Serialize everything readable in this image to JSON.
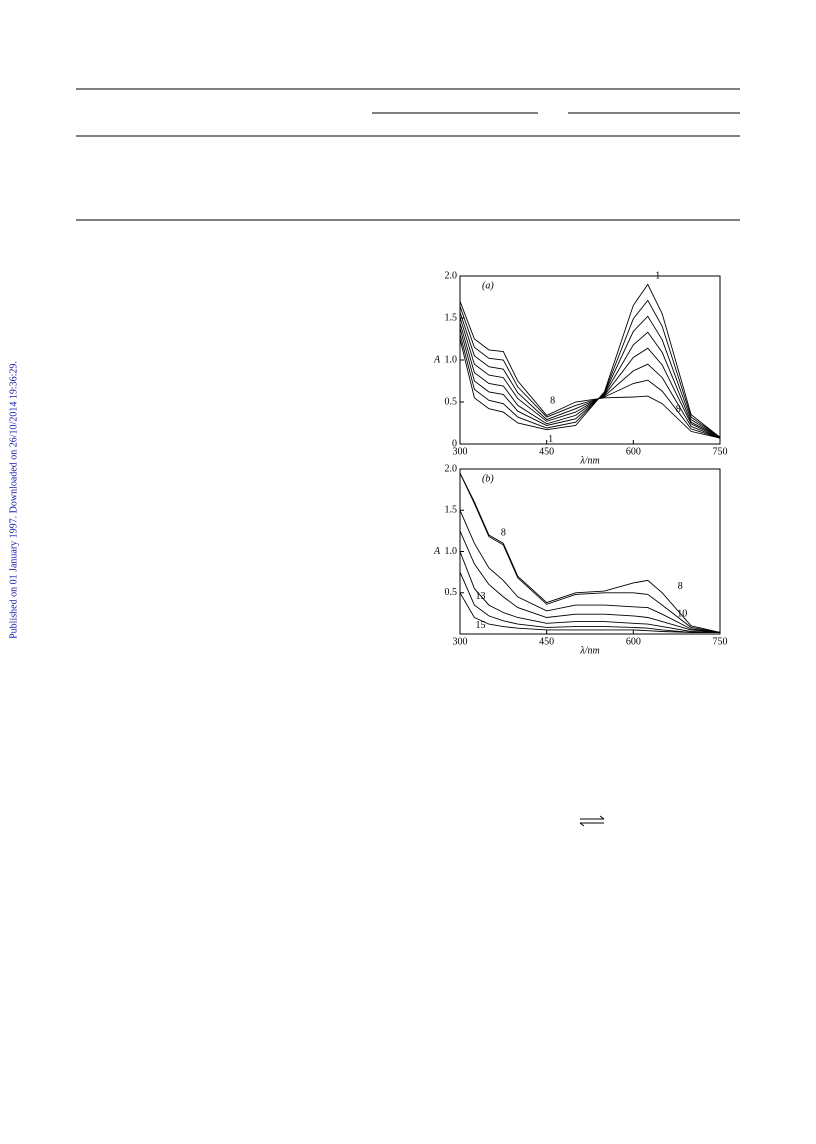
{
  "side_note": "Published on 01 January 1997. Downloaded on 26/10/2014 19:36:29.",
  "chart_data": [
    {
      "type": "line",
      "panel_label": "(a)",
      "x_label": "λ/nm",
      "y_label": "A",
      "color": "#000000",
      "x": [
        300,
        325,
        350,
        375,
        400,
        450,
        500,
        550,
        600,
        625,
        650,
        700,
        750
      ],
      "xlim": [
        300,
        750
      ],
      "xticks": [
        300,
        450,
        600,
        750
      ],
      "ylim": [
        0,
        2
      ],
      "yticks": [
        0,
        0.5,
        {
          "value": 1,
          "label": "1.0"
        },
        1.5,
        {
          "value": 2,
          "label": "2.0"
        }
      ],
      "series": [
        {
          "name": "1",
          "values": [
            1.25,
            0.55,
            0.42,
            0.38,
            0.25,
            0.17,
            0.22,
            0.62,
            1.65,
            1.9,
            1.55,
            0.35,
            0.08
          ]
        },
        {
          "values": [
            1.31,
            0.65,
            0.52,
            0.48,
            0.32,
            0.19,
            0.26,
            0.61,
            1.49,
            1.71,
            1.4,
            0.32,
            0.08
          ]
        },
        {
          "values": [
            1.38,
            0.75,
            0.62,
            0.59,
            0.39,
            0.22,
            0.3,
            0.6,
            1.34,
            1.52,
            1.24,
            0.29,
            0.08
          ]
        },
        {
          "values": [
            1.44,
            0.85,
            0.72,
            0.69,
            0.46,
            0.24,
            0.34,
            0.59,
            1.18,
            1.33,
            1.09,
            0.26,
            0.08
          ]
        },
        {
          "values": [
            1.51,
            0.95,
            0.82,
            0.79,
            0.54,
            0.27,
            0.38,
            0.58,
            1.03,
            1.14,
            0.94,
            0.24,
            0.07
          ]
        },
        {
          "values": [
            1.57,
            1.05,
            0.92,
            0.89,
            0.61,
            0.29,
            0.42,
            0.57,
            0.87,
            0.95,
            0.79,
            0.21,
            0.07
          ]
        },
        {
          "values": [
            1.64,
            1.15,
            1.02,
            1.0,
            0.68,
            0.32,
            0.46,
            0.56,
            0.72,
            0.76,
            0.63,
            0.18,
            0.07
          ]
        },
        {
          "name": "8",
          "values": [
            1.7,
            1.25,
            1.12,
            1.1,
            0.75,
            0.34,
            0.5,
            0.55,
            0.56,
            0.57,
            0.48,
            0.15,
            0.07
          ]
        }
      ]
    },
    {
      "type": "line",
      "panel_label": "(b)",
      "x_label": "λ/nm",
      "y_label": "A",
      "color": "#000000",
      "x": [
        300,
        325,
        350,
        375,
        400,
        450,
        500,
        550,
        600,
        625,
        650,
        700,
        750
      ],
      "xlim": [
        300,
        750
      ],
      "xticks": [
        300,
        450,
        600,
        750
      ],
      "ylim": [
        0,
        2
      ],
      "yticks": [
        0.5,
        {
          "value": 1,
          "label": "1.0"
        },
        1.5,
        {
          "value": 2,
          "label": "2.0"
        }
      ],
      "series": [
        {
          "name": "8",
          "values": [
            1.95,
            1.6,
            1.2,
            1.1,
            0.7,
            0.38,
            0.5,
            0.52,
            0.62,
            0.65,
            0.5,
            0.1,
            0.02
          ]
        },
        {
          "values": [
            1.95,
            1.58,
            1.18,
            1.08,
            0.68,
            0.36,
            0.48,
            0.5,
            0.5,
            0.48,
            0.35,
            0.08,
            0.02
          ]
        },
        {
          "name": "10",
          "values": [
            1.5,
            1.1,
            0.8,
            0.65,
            0.45,
            0.28,
            0.35,
            0.35,
            0.33,
            0.32,
            0.24,
            0.06,
            0.02
          ]
        },
        {
          "values": [
            1.25,
            0.85,
            0.6,
            0.45,
            0.32,
            0.2,
            0.24,
            0.24,
            0.22,
            0.2,
            0.15,
            0.05,
            0.02
          ]
        },
        {
          "name": "13",
          "values": [
            1.0,
            0.55,
            0.35,
            0.26,
            0.2,
            0.13,
            0.15,
            0.15,
            0.13,
            0.12,
            0.09,
            0.03,
            0.02
          ]
        },
        {
          "values": [
            0.75,
            0.35,
            0.22,
            0.16,
            0.12,
            0.08,
            0.09,
            0.09,
            0.08,
            0.07,
            0.05,
            0.02,
            0.02
          ]
        },
        {
          "name": "15",
          "values": [
            0.5,
            0.2,
            0.12,
            0.09,
            0.07,
            0.05,
            0.05,
            0.05,
            0.05,
            0.04,
            0.03,
            0.02,
            0.02
          ]
        }
      ]
    }
  ]
}
